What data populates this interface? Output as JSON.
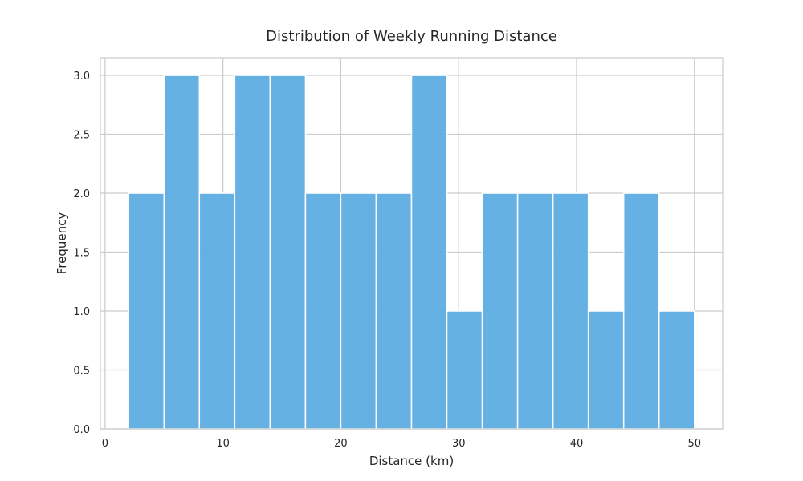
{
  "chart_data": {
    "type": "bar",
    "title": "Distribution of Weekly Running Distance",
    "xlabel": "Distance (km)",
    "ylabel": "Frequency",
    "bin_edges": [
      2,
      5,
      8,
      11,
      14,
      17,
      20,
      23,
      26,
      29,
      32,
      35,
      38,
      41,
      44,
      47,
      50
    ],
    "values": [
      2,
      3,
      2,
      3,
      3,
      2,
      2,
      2,
      3,
      1,
      2,
      2,
      2,
      1,
      2,
      1
    ],
    "xlim": [
      -0.4,
      52.4
    ],
    "ylim": [
      0,
      3.15
    ],
    "xticks": [
      0,
      10,
      20,
      30,
      40,
      50
    ],
    "xtick_labels": [
      "0",
      "10",
      "20",
      "30",
      "40",
      "50"
    ],
    "yticks": [
      0,
      0.5,
      1,
      1.5,
      2,
      2.5,
      3
    ],
    "ytick_labels": [
      "0.0",
      "0.5",
      "1.0",
      "1.5",
      "2.0",
      "2.5",
      "3.0"
    ],
    "grid": true,
    "bar_color": "#5dade2",
    "grid_color": "#cccccc",
    "axes_edge_color": "#cccccc"
  }
}
